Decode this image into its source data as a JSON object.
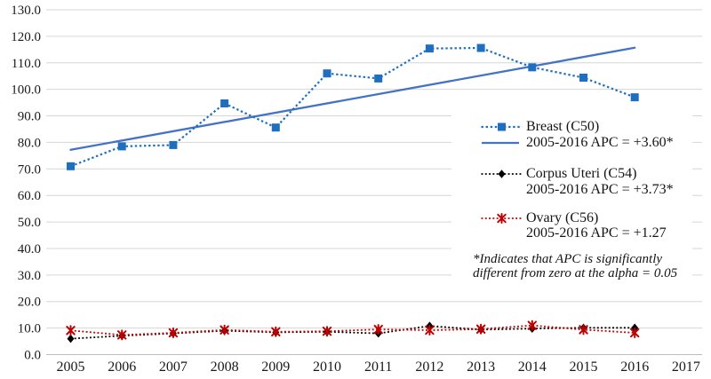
{
  "chart_data": {
    "type": "line",
    "title": "",
    "x_years": [
      2005,
      2006,
      2007,
      2008,
      2009,
      2010,
      2011,
      2012,
      2013,
      2014,
      2015,
      2016
    ],
    "x_axis_labels": [
      "2005",
      "2006",
      "2007",
      "2008",
      "2009",
      "2010",
      "2011",
      "2012",
      "2013",
      "2014",
      "2015",
      "2016",
      "2017"
    ],
    "y_ticks": [
      0,
      10,
      20,
      30,
      40,
      50,
      60,
      70,
      80,
      90,
      100,
      110,
      120,
      130
    ],
    "y_tick_labels": [
      "0.0",
      "10.0",
      "20.0",
      "30.0",
      "40.0",
      "50.0",
      "60.0",
      "70.0",
      "80.0",
      "90.0",
      "100.0",
      "110.0",
      "120.0",
      "130.0"
    ],
    "ylim": [
      0,
      130
    ],
    "grid": "horizontal",
    "legend_position": "middle-right",
    "series": [
      {
        "name": "Breast (C50)",
        "apc_label": "2005-2016 APC = +3.60*",
        "color": "#1e6fc0",
        "marker": "square",
        "line_style": "dotted",
        "values": [
          71.0,
          78.5,
          79.0,
          94.7,
          85.6,
          106.0,
          104.1,
          115.4,
          115.6,
          108.3,
          104.4,
          97.0
        ]
      },
      {
        "name": "Corpus Uteri (C54)",
        "apc_label": "2005-2016 APC = +3.73*",
        "color": "#000000",
        "marker": "diamond",
        "line_style": "dotted",
        "values": [
          6.0,
          7.1,
          8.0,
          9.0,
          8.4,
          8.6,
          8.0,
          10.8,
          9.4,
          9.8,
          10.1,
          10.1
        ]
      },
      {
        "name": "Ovary (C56)",
        "apc_label": "2005-2016 APC = +1.27",
        "color": "#c00000",
        "marker": "x-star",
        "line_style": "dotted",
        "values": [
          9.1,
          7.4,
          8.2,
          9.3,
          8.6,
          8.8,
          9.5,
          9.2,
          9.6,
          11.0,
          9.4,
          8.2
        ]
      }
    ],
    "trend_line": {
      "for_series": "Breast (C50)",
      "label": "2005-2016 APC = +3.60*",
      "color": "#4472c4",
      "style": "solid",
      "x": [
        2005,
        2016
      ],
      "y": [
        77.2,
        115.7
      ]
    },
    "footnote": [
      "*Indicates that APC is significantly",
      "different from zero at the alpha = 0.05"
    ]
  },
  "colors": {
    "background": "#ffffff",
    "gridline": "#d6d6d6",
    "zero_line": "#bdbdbd",
    "axis_text": "#1a1a1a"
  }
}
